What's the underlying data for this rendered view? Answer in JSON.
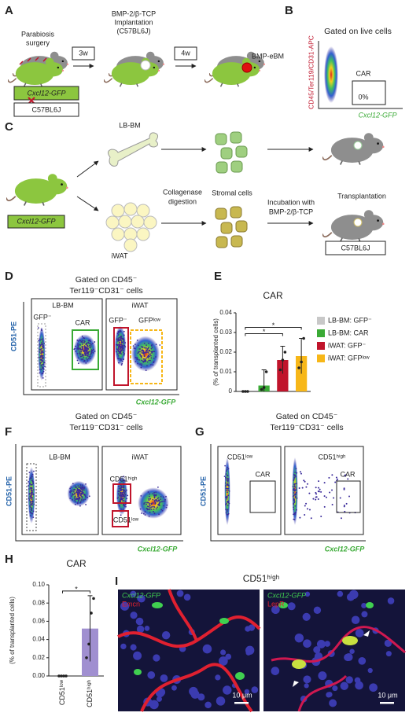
{
  "panels": {
    "A": {
      "label": "A",
      "step1": [
        "Parabiosis",
        "surgery"
      ],
      "step2": [
        "BMP-2/β-TCP",
        "Implantation",
        "(C57BL6J)"
      ],
      "arrow1": "3w",
      "arrow2": "4w",
      "result": "BMP-eBM",
      "donor": "Cxcl12-GFP",
      "host": "C57BL6J"
    },
    "B": {
      "label": "B",
      "title": "Gated on live cells",
      "gate": "CAR",
      "gate_value": "0%",
      "ylabel": "CD45/Ter119/CD31-APC",
      "xlabel": "Cxcl12-GFP"
    },
    "C": {
      "label": "C",
      "source": "Cxcl12-GFP",
      "tissue1": "LB-BM",
      "tissue2": "iWAT",
      "step1": [
        "Collagenase",
        "digestion"
      ],
      "cells": "Stromal cells",
      "step2": [
        "Incubation with",
        "BMP-2/β-TCP"
      ],
      "step3": "Transplantation",
      "host": "C57BL6J"
    },
    "D": {
      "label": "D",
      "title": [
        "Gated on CD45⁻",
        "Ter119⁻CD31⁻ cells"
      ],
      "plot1": "LB-BM",
      "plot2": "iWAT",
      "gates1": [
        "GFP⁻",
        "CAR"
      ],
      "gates2": [
        "GFP⁻",
        "GFPˡᵒʷ"
      ],
      "ylabel": "CD51-PE",
      "xlabel": "Cxcl12-GFP"
    },
    "F": {
      "label": "F",
      "title": [
        "Gated on CD45⁻",
        "Ter119⁻CD31⁻ cells"
      ],
      "plot1": "LB-BM",
      "plot2": "iWAT",
      "gates2": [
        "CD51ʰⁱᵍʰ",
        "CD51ˡᵒʷ"
      ],
      "ylabel": "CD51-PE",
      "xlabel": "Cxcl12-GFP"
    },
    "G": {
      "label": "G",
      "title": [
        "Gated on CD45⁻",
        "Ter119⁻CD31⁻ cells"
      ],
      "plot1": "CD51ˡᵒʷ",
      "plot2": "CD51ʰⁱᵍʰ",
      "gate": "CAR",
      "ylabel": "CD51-PE",
      "xlabel": "Cxcl12-GFP"
    },
    "I": {
      "label": "I",
      "title": "CD51ʰⁱᵍʰ",
      "image1": [
        "Cxcl12-GFP",
        "Emcn"
      ],
      "image2": [
        "Cxcl12-GFP",
        "LepR"
      ],
      "scale": "10 μm"
    }
  },
  "chart_data": [
    {
      "type": "bar",
      "label": "E",
      "title": "CAR",
      "ylabel": "(% of transplanted cells)",
      "categories": [
        "LB-BM: GFP⁻",
        "LB-BM: CAR",
        "iWAT: GFP⁻",
        "iWAT: GFPˡᵒʷ"
      ],
      "values": [
        0,
        0.003,
        0.016,
        0.018
      ],
      "errors": [
        0,
        0.008,
        0.007,
        0.009
      ],
      "points": [
        [
          0,
          0,
          0
        ],
        [
          0.001,
          0.002,
          0.01
        ],
        [
          0.011,
          0.016,
          0.02
        ],
        [
          0.012,
          0.015,
          0.027
        ]
      ],
      "colors": [
        "#c8c8c8",
        "#3aaa35",
        "#c0142b",
        "#f7b718"
      ],
      "ylim": [
        0,
        0.04
      ],
      "yticks": [
        0,
        0.01,
        0.02,
        0.03,
        0.04
      ],
      "legend": "right",
      "comparisons": [
        {
          "label": "*",
          "groups": [
            0,
            2
          ]
        },
        {
          "label": "*",
          "groups": [
            0,
            3
          ]
        }
      ]
    },
    {
      "type": "bar",
      "label": "H",
      "title": "CAR",
      "ylabel": "(% of transplanted cells)",
      "categories": [
        "CD51ˡᵒʷ",
        "CD51ʰⁱᵍʰ"
      ],
      "values": [
        0,
        0.052
      ],
      "errors": [
        0,
        0.036
      ],
      "points": [
        [
          0,
          0,
          0,
          0
        ],
        [
          0.02,
          0.035,
          0.069,
          0.085
        ]
      ],
      "color": "#a08fd0",
      "ylim": [
        0,
        0.1
      ],
      "yticks": [
        {
          "value": 0,
          "label": "0.00"
        },
        {
          "value": 0.02,
          "label": "0.02"
        },
        {
          "value": 0.04,
          "label": "0.04"
        },
        {
          "value": 0.06,
          "label": "0.06"
        },
        {
          "value": 0.08,
          "label": "0.08"
        },
        {
          "value": 0.1,
          "label": "0.10"
        }
      ],
      "comparisons": [
        {
          "label": "*",
          "groups": [
            0,
            1
          ]
        }
      ]
    }
  ]
}
